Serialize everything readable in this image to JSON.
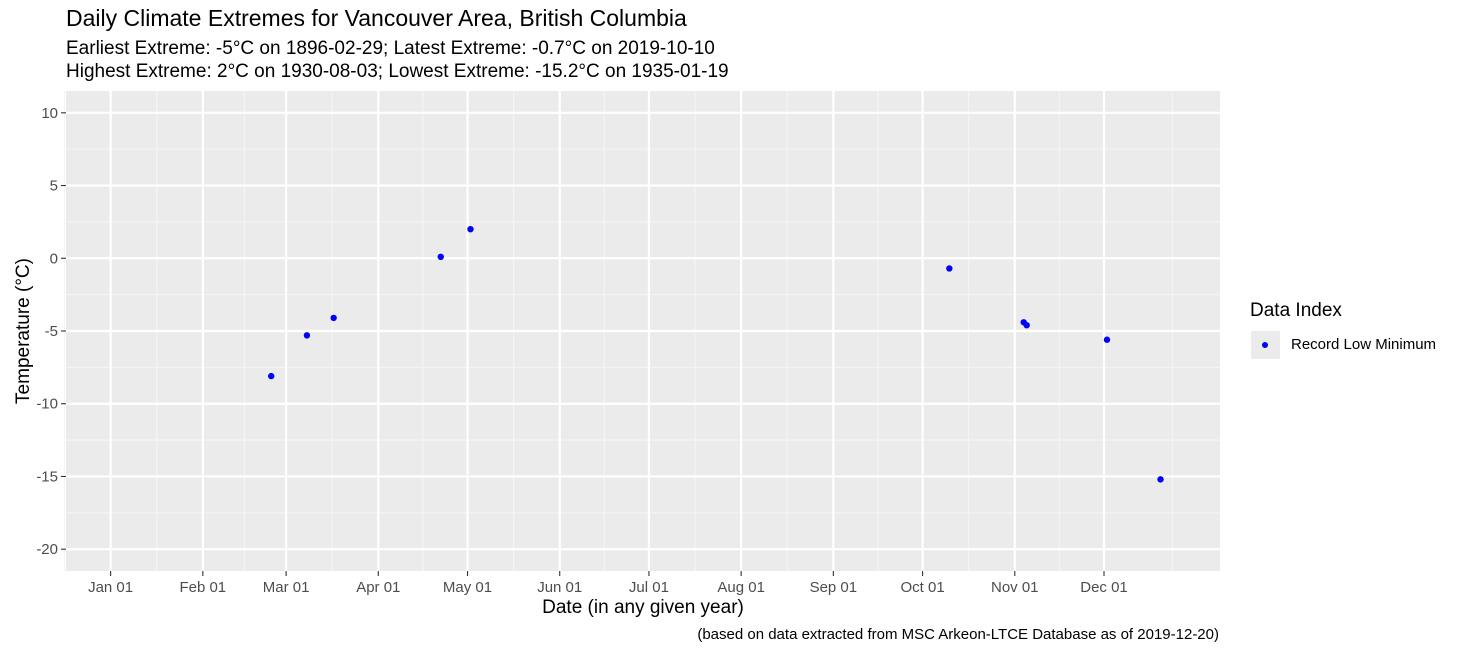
{
  "chart_data": {
    "type": "scatter",
    "title": "Daily Climate Extremes for Vancouver Area, British Columbia",
    "subtitle_lines": [
      "Earliest Extreme: -5°C on 1896-02-29; Latest Extreme: -0.7°C on 2019-10-10",
      "Highest Extreme: 2°C on 1930-08-03; Lowest Extreme: -15.2°C on 1935-01-19"
    ],
    "xlabel": "Date (in any given year)",
    "ylabel": "Temperature (°C)",
    "caption": "(based on data extracted from MSC Arkeon-LTCE Database as of 2019-12-20)",
    "x_ticks": [
      "Jan 01",
      "Feb 01",
      "Mar 01",
      "Apr 01",
      "May 01",
      "Jun 01",
      "Jul 01",
      "Aug 01",
      "Sep 01",
      "Oct 01",
      "Nov 01",
      "Dec 01"
    ],
    "y_ticks": [
      10,
      5,
      0,
      -5,
      -10,
      -15,
      -20
    ],
    "xlim": [
      "Dec 17",
      "Jan 09"
    ],
    "ylim": [
      -21.5,
      11.5
    ],
    "grid": true,
    "legend": {
      "title": "Data Index",
      "position": "right",
      "entries": [
        {
          "label": "Record Low Minimum",
          "color": "#0000ff"
        }
      ]
    },
    "series": [
      {
        "name": "Record Low Minimum",
        "color": "#0000ff",
        "points": [
          {
            "x": "Feb 24",
            "y": -8.1
          },
          {
            "x": "Mar 08",
            "y": -5.3
          },
          {
            "x": "Mar 17",
            "y": -4.1
          },
          {
            "x": "Apr 22",
            "y": 0.1
          },
          {
            "x": "May 02",
            "y": 2.0
          },
          {
            "x": "Oct 10",
            "y": -0.7
          },
          {
            "x": "Nov 04",
            "y": -4.4
          },
          {
            "x": "Nov 05",
            "y": -4.6
          },
          {
            "x": "Dec 02",
            "y": -5.6
          },
          {
            "x": "Dec 20",
            "y": -15.2
          }
        ]
      }
    ]
  }
}
